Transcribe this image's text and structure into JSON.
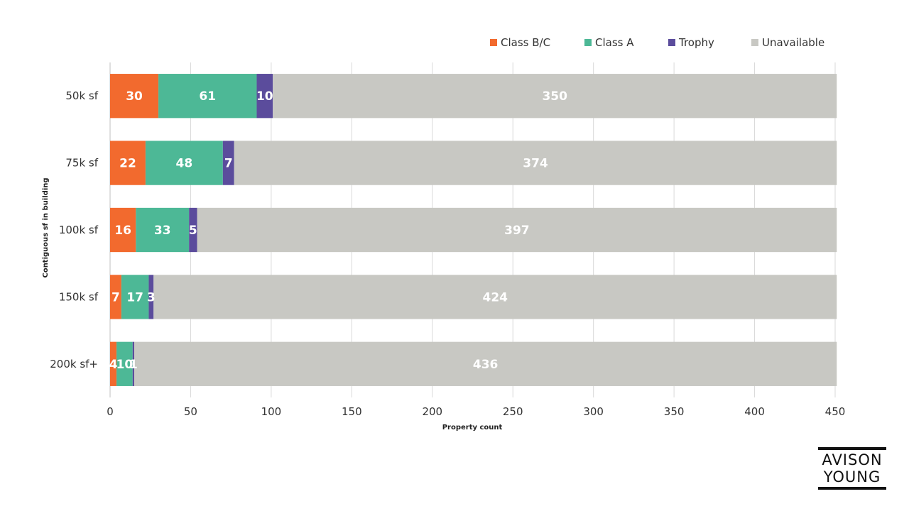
{
  "chart_data": {
    "type": "bar",
    "orientation": "horizontal",
    "stacked": true,
    "title": "",
    "xlabel": "Property count",
    "ylabel": "Contiguous sf in building",
    "xlim": [
      0,
      450
    ],
    "xticks": [
      0,
      50,
      100,
      150,
      200,
      250,
      300,
      350,
      400,
      450
    ],
    "grid": true,
    "legend_position": "top-right",
    "categories": [
      "50k sf",
      "75k sf",
      "100k sf",
      "150k sf",
      "200k sf+"
    ],
    "series": [
      {
        "name": "Class B/C",
        "color": "#f26a2e",
        "values": [
          30,
          22,
          16,
          7,
          4
        ]
      },
      {
        "name": "Class A",
        "color": "#4db896",
        "values": [
          61,
          48,
          33,
          17,
          10
        ]
      },
      {
        "name": "Trophy",
        "color": "#5b4c9c",
        "values": [
          10,
          7,
          5,
          3,
          1
        ]
      },
      {
        "name": "Unavailable",
        "color": "#c8c8c3",
        "values": [
          350,
          374,
          397,
          424,
          436
        ]
      }
    ]
  },
  "logo": {
    "line1": "AVISON",
    "line2": "YOUNG"
  }
}
